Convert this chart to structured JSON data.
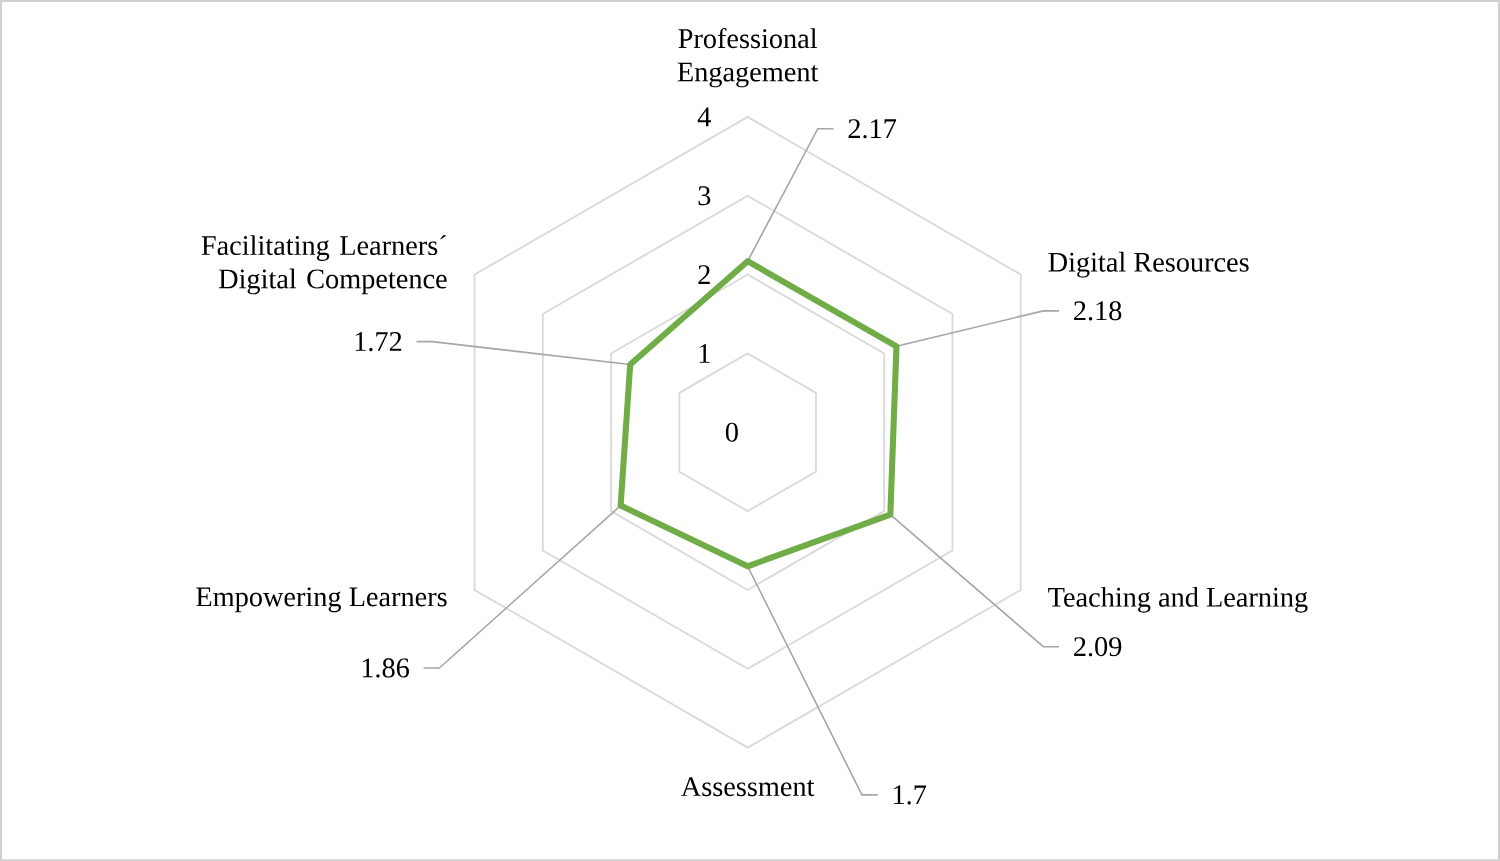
{
  "chart_data": {
    "type": "radar",
    "categories": [
      "Professional Engagement",
      "Digital Resources",
      "Teaching and Learning",
      "Assessment",
      "Empowering Learners",
      "Facilitating Learners´ Digital Competence"
    ],
    "series": [
      {
        "color": "#70ad47",
        "values": [
          2.17,
          2.18,
          2.09,
          1.7,
          1.86,
          1.72
        ],
        "value_labels": [
          "2.17",
          "2.18",
          "2.09",
          "1.7",
          "1.86",
          "1.72"
        ]
      }
    ],
    "ylim": [
      0,
      4
    ],
    "yticks": [
      {
        "value": 0,
        "label": "0"
      },
      {
        "value": 1,
        "label": "1"
      },
      {
        "value": 2,
        "label": "2"
      },
      {
        "value": 3,
        "label": "3"
      },
      {
        "value": 4,
        "label": "4"
      }
    ],
    "grid": true,
    "marker": "none",
    "line_style": "solid"
  }
}
